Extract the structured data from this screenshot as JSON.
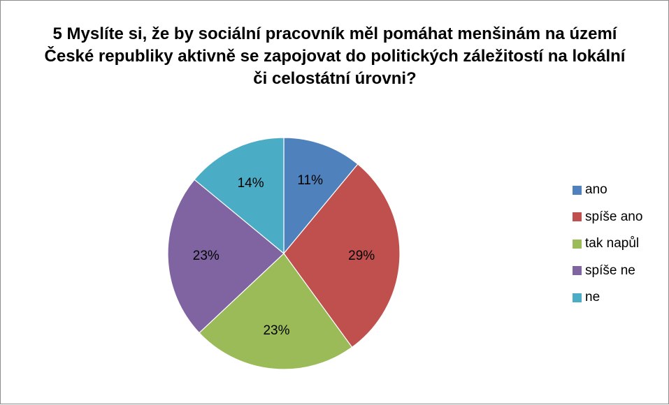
{
  "chart_data": {
    "type": "pie",
    "title": "5 Myslíte si, že by sociální pracovník měl pomáhat menšinám na území České republiky aktivně se zapojovat do politických záležitostí na lokální či celostátní úrovni?",
    "slices": [
      {
        "label": "ano",
        "value": 11,
        "display": "11%",
        "color": "#4F81BD"
      },
      {
        "label": "spíše ano",
        "value": 29,
        "display": "29%",
        "color": "#C0504D"
      },
      {
        "label": "tak napůl",
        "value": 23,
        "display": "23%",
        "color": "#9BBB59"
      },
      {
        "label": "spíše ne",
        "value": 23,
        "display": "23%",
        "color": "#8064A2"
      },
      {
        "label": "ne",
        "value": 14,
        "display": "14%",
        "color": "#4BACC6"
      }
    ],
    "unit": "%",
    "legend_position": "right",
    "start": "12 o'clock",
    "direction": "clockwise"
  }
}
